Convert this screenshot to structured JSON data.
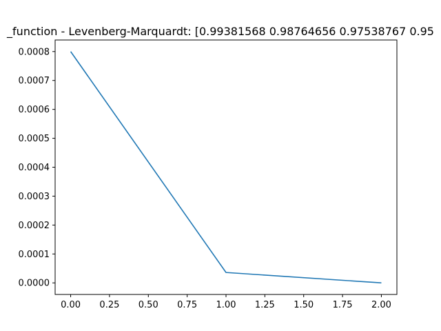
{
  "chart_data": {
    "type": "line",
    "title": "_function - Levenberg-Marquardt: [0.99381568 0.98764656 0.97538767 0.95",
    "xlabel": "",
    "ylabel": "",
    "grid": false,
    "xlim": [
      -0.1,
      2.1
    ],
    "ylim": [
      -4e-05,
      0.00084
    ],
    "x_ticks": [
      0.0,
      0.25,
      0.5,
      0.75,
      1.0,
      1.25,
      1.5,
      1.75,
      2.0
    ],
    "x_tick_labels": [
      "0.00",
      "0.25",
      "0.50",
      "0.75",
      "1.00",
      "1.25",
      "1.50",
      "1.75",
      "2.00"
    ],
    "y_ticks": [
      0.0,
      0.0001,
      0.0002,
      0.0003,
      0.0004,
      0.0005,
      0.0006,
      0.0007,
      0.0008
    ],
    "y_tick_labels": [
      "0.0000",
      "0.0001",
      "0.0002",
      "0.0003",
      "0.0004",
      "0.0005",
      "0.0006",
      "0.0007",
      "0.0008"
    ],
    "series": [
      {
        "color": "#1f77b4",
        "x": [
          0,
          1,
          2
        ],
        "y": [
          0.0008,
          3.6e-05,
          0.0
        ]
      }
    ]
  }
}
